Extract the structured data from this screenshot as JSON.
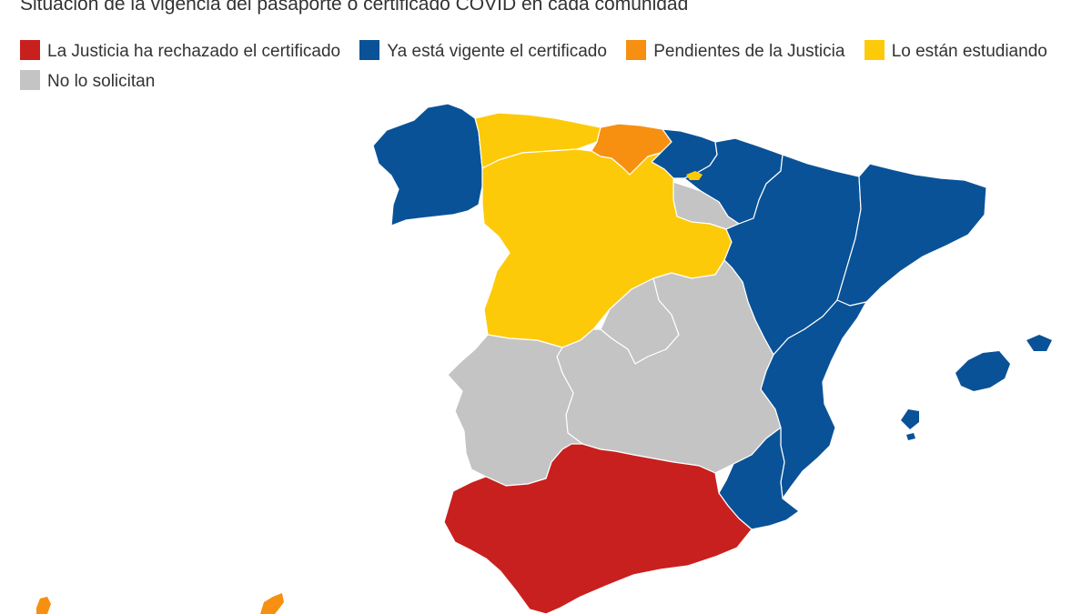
{
  "title": "Situación de la vigencia del pasaporte o certificado COVID en cada comunidad",
  "legend": [
    {
      "key": "rechazado",
      "label": "La Justicia ha rechazado el certificado",
      "color": "#c8201e"
    },
    {
      "key": "vigente",
      "label": "Ya está vigente el certificado",
      "color": "#0a5297"
    },
    {
      "key": "pendiente",
      "label": "Pendientes de la Justicia",
      "color": "#f78f11"
    },
    {
      "key": "estudiando",
      "label": "Lo están estudiando",
      "color": "#fdca0a"
    },
    {
      "key": "no_solicitan",
      "label": "No lo solicitan",
      "color": "#c4c4c4"
    }
  ],
  "regions": [
    {
      "name": "Galicia",
      "status": "vigente"
    },
    {
      "name": "Asturias",
      "status": "estudiando"
    },
    {
      "name": "Cantabria",
      "status": "pendiente"
    },
    {
      "name": "País Vasco",
      "status": "vigente"
    },
    {
      "name": "Navarra",
      "status": "vigente"
    },
    {
      "name": "La Rioja",
      "status": "no_solicitan"
    },
    {
      "name": "Castilla y León",
      "status": "estudiando"
    },
    {
      "name": "Aragón",
      "status": "vigente"
    },
    {
      "name": "Cataluña",
      "status": "vigente"
    },
    {
      "name": "Comunidad de Madrid",
      "status": "no_solicitan"
    },
    {
      "name": "Castilla-La Mancha",
      "status": "no_solicitan"
    },
    {
      "name": "Extremadura",
      "status": "no_solicitan"
    },
    {
      "name": "Comunidad Valenciana",
      "status": "vigente"
    },
    {
      "name": "Región de Murcia",
      "status": "vigente"
    },
    {
      "name": "Andalucía",
      "status": "rechazado"
    },
    {
      "name": "Islas Baleares",
      "status": "vigente"
    },
    {
      "name": "Canarias",
      "status": "pendiente"
    }
  ]
}
